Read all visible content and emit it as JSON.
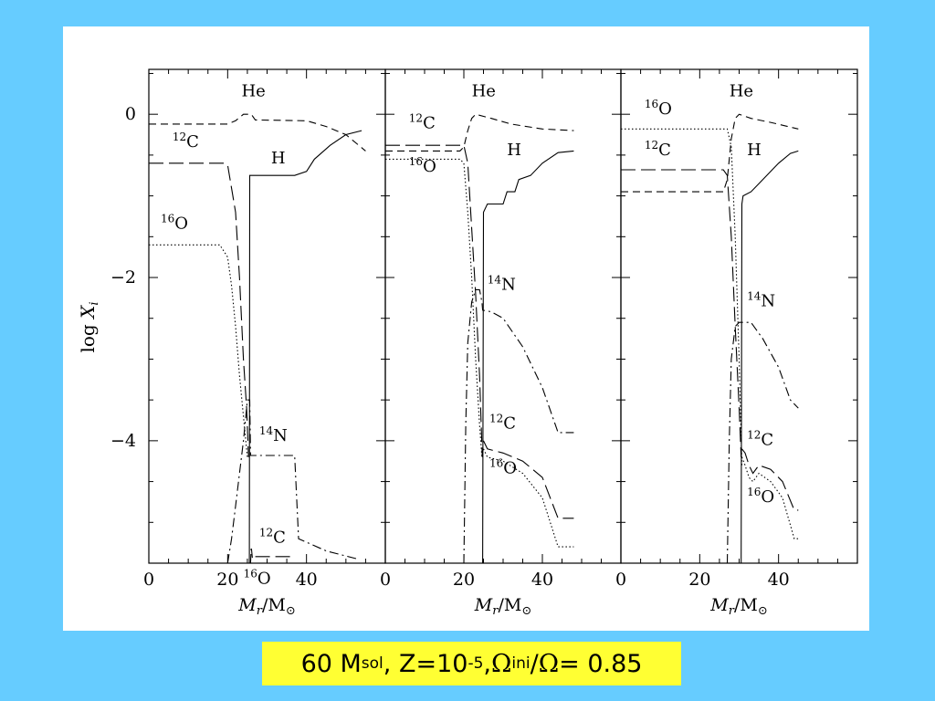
{
  "caption": {
    "mass": "60 M",
    "mass_sub": "sol",
    "sep1": ", Z=10",
    "z_exp": "-5",
    "sep2": ", ",
    "omega_sym": "Ω",
    "omega_sub": "ini",
    "slash": "/",
    "omega_sym2": "Ω",
    "value": " = 0.85"
  },
  "chart_data": {
    "type": "line",
    "ylabel": "log X_i",
    "ylabel_parts": {
      "base": "log ",
      "var": "X",
      "sub": "i"
    },
    "xlabel_parts": {
      "var": "M",
      "sub": "r",
      "rest": "/M",
      "sym": "⊙"
    },
    "ylim": [
      -5.5,
      0.55
    ],
    "y_ticks": [
      0,
      -2,
      -4
    ],
    "y_tick_labels": [
      "0",
      "−2",
      "−4"
    ],
    "panels": [
      {
        "xlim": [
          0,
          60
        ],
        "x_ticks": [
          0,
          20,
          40
        ],
        "series": [
          {
            "species": "He",
            "style": "dashed",
            "points": [
              [
                0,
                -0.12
              ],
              [
                20,
                -0.12
              ],
              [
                22,
                -0.08
              ],
              [
                24,
                0.0
              ],
              [
                26,
                0.0
              ],
              [
                27,
                -0.07
              ],
              [
                40,
                -0.08
              ],
              [
                45,
                -0.15
              ],
              [
                50,
                -0.25
              ],
              [
                55,
                -0.45
              ]
            ]
          },
          {
            "species": "H",
            "style": "solid",
            "points": [
              [
                25.5,
                -5.5
              ],
              [
                25.6,
                -0.75
              ],
              [
                37,
                -0.75
              ],
              [
                40,
                -0.7
              ],
              [
                42,
                -0.55
              ],
              [
                46,
                -0.38
              ],
              [
                50,
                -0.25
              ],
              [
                54,
                -0.2
              ]
            ]
          },
          {
            "species": "12C",
            "style": "longdash",
            "points": [
              [
                0,
                -0.6
              ],
              [
                19,
                -0.6
              ],
              [
                20,
                -0.62
              ],
              [
                22,
                -1.2
              ],
              [
                23,
                -2.0
              ],
              [
                24,
                -3.0
              ],
              [
                24.8,
                -3.6
              ],
              [
                25.3,
                -4.2
              ]
            ]
          },
          {
            "species": "16O",
            "style": "dotted",
            "points": [
              [
                0,
                -1.6
              ],
              [
                18,
                -1.6
              ],
              [
                20,
                -1.75
              ],
              [
                21,
                -2.1
              ],
              [
                22,
                -2.6
              ],
              [
                23,
                -3.2
              ],
              [
                24,
                -3.7
              ],
              [
                25,
                -4.2
              ]
            ]
          },
          {
            "species": "14N",
            "style": "dashdot",
            "points": [
              [
                20,
                -5.5
              ],
              [
                21,
                -5.2
              ],
              [
                22,
                -4.8
              ],
              [
                23,
                -4.4
              ],
              [
                24,
                -4.0
              ],
              [
                25,
                -3.5
              ],
              [
                25.6,
                -3.5
              ],
              [
                25.8,
                -4.18
              ],
              [
                30,
                -4.18
              ],
              [
                37,
                -4.18
              ],
              [
                38,
                -5.2
              ],
              [
                45,
                -5.35
              ],
              [
                53,
                -5.45
              ]
            ]
          },
          {
            "species": "12C",
            "style": "longdash",
            "points": [
              [
                27,
                -5.42
              ],
              [
                37,
                -5.42
              ]
            ]
          },
          {
            "species": "16O",
            "style": "dashdot",
            "points": [
              [
                25.8,
                -5.5
              ],
              [
                26,
                -5.3
              ],
              [
                26.3,
                -5.45
              ]
            ]
          }
        ],
        "labels": [
          {
            "text": "He",
            "x": 23.5,
            "y": 0.22
          },
          {
            "text": "H",
            "x": 31,
            "y": -0.6
          },
          {
            "sup": "12",
            "text": "C",
            "x": 6,
            "y": -0.4
          },
          {
            "sup": "16",
            "text": "O",
            "x": 3,
            "y": -1.4
          },
          {
            "sup": "14",
            "text": "N",
            "x": 28,
            "y": -4.0
          },
          {
            "sup": "12",
            "text": "C",
            "x": 28,
            "y": -5.25
          },
          {
            "sup": "16",
            "text": "O",
            "x": 24,
            "y": -5.75
          }
        ]
      },
      {
        "xlim": [
          0,
          60
        ],
        "x_ticks": [
          0,
          20,
          40
        ],
        "series": [
          {
            "species": "He",
            "style": "dashed",
            "points": [
              [
                0,
                -0.45
              ],
              [
                19,
                -0.45
              ],
              [
                20,
                -0.4
              ],
              [
                21,
                -0.2
              ],
              [
                22,
                -0.05
              ],
              [
                23,
                0.0
              ],
              [
                27,
                -0.05
              ],
              [
                32,
                -0.12
              ],
              [
                40,
                -0.18
              ],
              [
                48,
                -0.2
              ]
            ]
          },
          {
            "species": "H",
            "style": "solid",
            "points": [
              [
                24.8,
                -5.5
              ],
              [
                25,
                -1.2
              ],
              [
                26,
                -1.1
              ],
              [
                30,
                -1.1
              ],
              [
                31,
                -0.95
              ],
              [
                33,
                -0.95
              ],
              [
                34,
                -0.8
              ],
              [
                37,
                -0.75
              ],
              [
                40,
                -0.6
              ],
              [
                44,
                -0.47
              ],
              [
                48,
                -0.45
              ]
            ]
          },
          {
            "species": "12C",
            "style": "longdash",
            "points": [
              [
                0,
                -0.38
              ],
              [
                20,
                -0.38
              ],
              [
                21,
                -0.6
              ],
              [
                22,
                -1.4
              ],
              [
                23,
                -2.2
              ],
              [
                24,
                -3.2
              ],
              [
                24.7,
                -4.2
              ]
            ]
          },
          {
            "species": "16O",
            "style": "dotted",
            "points": [
              [
                0,
                -0.55
              ],
              [
                19,
                -0.55
              ],
              [
                20,
                -0.6
              ],
              [
                21,
                -1.2
              ],
              [
                22,
                -2.0
              ],
              [
                23,
                -3.0
              ],
              [
                24,
                -3.8
              ],
              [
                24.6,
                -4.2
              ]
            ]
          },
          {
            "species": "14N",
            "style": "dashdot",
            "points": [
              [
                20,
                -5.5
              ],
              [
                20.5,
                -3.8
              ],
              [
                21,
                -2.8
              ],
              [
                22,
                -2.3
              ],
              [
                23,
                -2.15
              ],
              [
                24,
                -2.15
              ],
              [
                24.6,
                -2.3
              ],
              [
                24.8,
                -2.4
              ],
              [
                27,
                -2.42
              ],
              [
                30,
                -2.5
              ],
              [
                35,
                -2.85
              ],
              [
                40,
                -3.35
              ],
              [
                44,
                -3.9
              ],
              [
                48,
                -3.9
              ]
            ]
          },
          {
            "species": "12C",
            "style": "longdash",
            "points": [
              [
                25,
                -4.0
              ],
              [
                26,
                -4.1
              ],
              [
                30,
                -4.15
              ],
              [
                35,
                -4.25
              ],
              [
                40,
                -4.45
              ],
              [
                44,
                -4.95
              ],
              [
                48,
                -4.95
              ]
            ]
          },
          {
            "species": "16O",
            "style": "dotted",
            "points": [
              [
                25,
                -4.1
              ],
              [
                26,
                -4.2
              ],
              [
                30,
                -4.25
              ],
              [
                35,
                -4.4
              ],
              [
                40,
                -4.7
              ],
              [
                44,
                -5.3
              ],
              [
                48,
                -5.3
              ]
            ]
          }
        ],
        "labels": [
          {
            "text": "He",
            "x": 22,
            "y": 0.22
          },
          {
            "text": "H",
            "x": 31,
            "y": -0.5
          },
          {
            "sup": "12",
            "text": "C",
            "x": 6,
            "y": -0.17
          },
          {
            "sup": "16",
            "text": "O",
            "x": 6,
            "y": -0.7
          },
          {
            "sup": "14",
            "text": "N",
            "x": 26,
            "y": -2.15
          },
          {
            "sup": "12",
            "text": "C",
            "x": 26.5,
            "y": -3.85
          },
          {
            "sup": "16",
            "text": "O",
            "x": 26.5,
            "y": -4.4
          }
        ]
      },
      {
        "xlim": [
          0,
          60
        ],
        "x_ticks": [
          0,
          20,
          40
        ],
        "series": [
          {
            "species": "He",
            "style": "dashed",
            "points": [
              [
                0,
                -0.95
              ],
              [
                26,
                -0.95
              ],
              [
                27,
                -0.8
              ],
              [
                28,
                -0.3
              ],
              [
                29,
                -0.05
              ],
              [
                30,
                0.0
              ],
              [
                33,
                -0.05
              ],
              [
                38,
                -0.1
              ],
              [
                45,
                -0.18
              ]
            ]
          },
          {
            "species": "H",
            "style": "solid",
            "points": [
              [
                30.5,
                -5.5
              ],
              [
                30.7,
                -1.1
              ],
              [
                31,
                -1.0
              ],
              [
                33,
                -0.95
              ],
              [
                36,
                -0.8
              ],
              [
                40,
                -0.6
              ],
              [
                43,
                -0.48
              ],
              [
                45,
                -0.45
              ]
            ]
          },
          {
            "species": "12C",
            "style": "longdash",
            "points": [
              [
                0,
                -0.68
              ],
              [
                26,
                -0.68
              ],
              [
                27,
                -0.75
              ],
              [
                28,
                -1.5
              ],
              [
                29,
                -2.6
              ],
              [
                30,
                -3.6
              ],
              [
                30.5,
                -4.2
              ]
            ]
          },
          {
            "species": "16O",
            "style": "dotted",
            "points": [
              [
                0,
                -0.18
              ],
              [
                27,
                -0.18
              ],
              [
                28,
                -0.4
              ],
              [
                29,
                -1.5
              ],
              [
                30,
                -3.0
              ],
              [
                30.7,
                -4.3
              ]
            ]
          },
          {
            "species": "14N",
            "style": "dashdot",
            "points": [
              [
                27,
                -5.5
              ],
              [
                27.5,
                -4.0
              ],
              [
                28,
                -3.0
              ],
              [
                29,
                -2.6
              ],
              [
                30,
                -2.55
              ],
              [
                33,
                -2.55
              ],
              [
                36,
                -2.75
              ],
              [
                40,
                -3.1
              ],
              [
                43,
                -3.5
              ],
              [
                45,
                -3.6
              ]
            ]
          },
          {
            "species": "12C",
            "style": "longdash",
            "points": [
              [
                30.7,
                -4.1
              ],
              [
                31.5,
                -4.15
              ],
              [
                32.5,
                -4.3
              ],
              [
                33.5,
                -4.4
              ],
              [
                35,
                -4.3
              ],
              [
                38,
                -4.35
              ],
              [
                41,
                -4.5
              ],
              [
                44,
                -4.85
              ],
              [
                45,
                -4.85
              ]
            ]
          },
          {
            "species": "16O",
            "style": "dotted",
            "points": [
              [
                30.7,
                -4.2
              ],
              [
                31.5,
                -4.3
              ],
              [
                32.5,
                -4.45
              ],
              [
                33.5,
                -4.5
              ],
              [
                35,
                -4.4
              ],
              [
                38,
                -4.5
              ],
              [
                41,
                -4.7
              ],
              [
                44,
                -5.2
              ],
              [
                45,
                -5.2
              ]
            ]
          }
        ],
        "labels": [
          {
            "text": "He",
            "x": 27.5,
            "y": 0.22
          },
          {
            "text": "H",
            "x": 32,
            "y": -0.5
          },
          {
            "sup": "16",
            "text": "O",
            "x": 6,
            "y": 0.0
          },
          {
            "sup": "12",
            "text": "C",
            "x": 6,
            "y": -0.5
          },
          {
            "sup": "14",
            "text": "N",
            "x": 32,
            "y": -2.35
          },
          {
            "sup": "12",
            "text": "C",
            "x": 32,
            "y": -4.05
          },
          {
            "sup": "16",
            "text": "O",
            "x": 32,
            "y": -4.75
          }
        ]
      }
    ]
  }
}
